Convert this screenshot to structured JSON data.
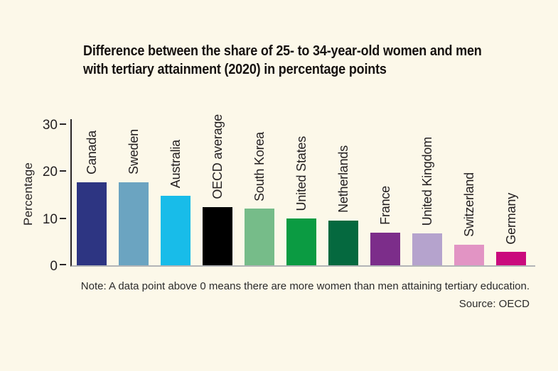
{
  "page": {
    "background": "#fcf8e9"
  },
  "title": {
    "line1": "Difference between the share of 25- to 34-year-old women and men",
    "line2": "with tertiary attainment (2020) in percentage points"
  },
  "chart_data": {
    "type": "bar",
    "title": "Difference between the share of 25- to 34-year-old women and men with tertiary attainment (2020) in percentage points",
    "ylabel": "Percentage",
    "xlabel": "",
    "ylim": [
      0,
      31
    ],
    "yticks": [
      0,
      10,
      20,
      30
    ],
    "grid": false,
    "legend": "none",
    "bar_label_rotation": 90,
    "categories": [
      "Canada",
      "Sweden",
      "Australia",
      "OECD average",
      "South Korea",
      "United States",
      "Netherlands",
      "France",
      "United Kingdom",
      "Switzerland",
      "Germany"
    ],
    "values": [
      17.7,
      17.6,
      14.8,
      12.4,
      12.0,
      9.9,
      9.5,
      6.9,
      6.8,
      4.4,
      2.8
    ],
    "colors": [
      "#2d3582",
      "#6ba4c1",
      "#18bce9",
      "#000000",
      "#76bc89",
      "#0b9b42",
      "#05693f",
      "#7c2d8a",
      "#b5a3cd",
      "#e294c4",
      "#ca0b7d"
    ],
    "axis_color": "#2a2627",
    "baseline_color": "#b3b5b7"
  },
  "note": "Note: A data point above 0 means there are more women than men attaining tertiary education.",
  "source": "Source: OECD"
}
